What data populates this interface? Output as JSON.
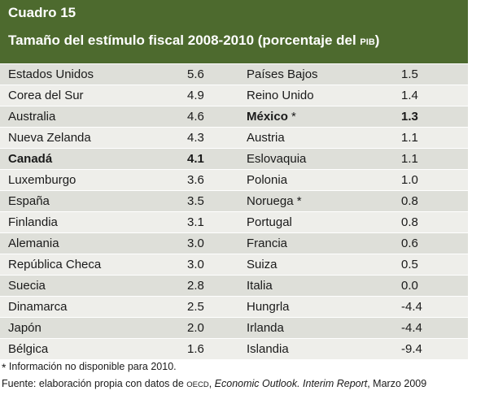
{
  "title": {
    "line1": "Cuadro 15",
    "line2": "Tamaño del estímulo fiscal 2008-2010 (porcentaje  del",
    "line2_suffix": "PIB",
    "line2_close": ")"
  },
  "rows": [
    {
      "left_country": "Estados Unidos",
      "left_value": "5.6",
      "right_country": "Países Bajos",
      "right_value": "1.5"
    },
    {
      "left_country": "Corea del Sur",
      "left_value": "4.9",
      "right_country": "Reino Unido",
      "right_value": "1.4"
    },
    {
      "left_country": "Australia",
      "left_value": "4.6",
      "right_country": "México",
      "right_mark": " *",
      "right_value": "1.3"
    },
    {
      "left_country": "Nueva Zelanda",
      "left_value": "4.3",
      "right_country": "Austria",
      "right_value": "1.1"
    },
    {
      "left_country": "Canadá",
      "left_value": "4.1",
      "right_country": "Eslovaquia",
      "right_value": "1.1"
    },
    {
      "left_country": "Luxemburgo",
      "left_value": "3.6",
      "right_country": "Polonia",
      "right_value": "1.0"
    },
    {
      "left_country": "España",
      "left_value": "3.5",
      "right_country": "Noruega *",
      "right_value": "0.8"
    },
    {
      "left_country": "Finlandia",
      "left_value": "3.1",
      "right_country": "Portugal",
      "right_value": "0.8"
    },
    {
      "left_country": "Alemania",
      "left_value": "3.0",
      "right_country": "Francia",
      "right_value": "0.6"
    },
    {
      "left_country": "República Checa",
      "left_value": "3.0",
      "right_country": "Suiza",
      "right_value": "0.5"
    },
    {
      "left_country": "Suecia",
      "left_value": "2.8",
      "right_country": "Italia",
      "right_value": "0.0"
    },
    {
      "left_country": "Dinamarca",
      "left_value": "2.5",
      "right_country": "Hungrla",
      "right_value": "-4.4"
    },
    {
      "left_country": "Japón",
      "left_value": "2.0",
      "right_country": "Irlanda",
      "right_value": "-4.4"
    },
    {
      "left_country": "Bélgica",
      "left_value": "1.6",
      "right_country": "Islandia",
      "right_value": "-9.4"
    }
  ],
  "note": {
    "asterisk": "*",
    "text": " Información no disponible para 2010."
  },
  "source": {
    "prefix": "Fuente: elaboración propia con datos de ",
    "org": "OECD",
    "comma": ", ",
    "publication": "Economic Outlook. Interim Report",
    "suffix": ", Marzo 2009"
  },
  "colors": {
    "header_bg": "#4d6a2e",
    "row_odd": "#dedfd9",
    "row_even": "#eeeeea"
  }
}
